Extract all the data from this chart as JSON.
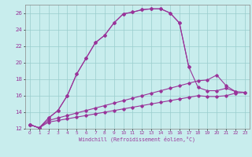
{
  "bg_color": "#c8eded",
  "line_color": "#993399",
  "grid_color": "#99cccc",
  "xlabel": "Windchill (Refroidissement éolien,°C)",
  "xlim": [
    -0.5,
    23.5
  ],
  "ylim": [
    12,
    27
  ],
  "xticks": [
    0,
    1,
    2,
    3,
    4,
    5,
    6,
    7,
    8,
    9,
    10,
    11,
    12,
    13,
    14,
    15,
    16,
    17,
    18,
    19,
    20,
    21,
    22,
    23
  ],
  "yticks": [
    12,
    14,
    16,
    18,
    20,
    22,
    24,
    26
  ],
  "series1_x": [
    0,
    1,
    2,
    3,
    4,
    5,
    6,
    7,
    8,
    9,
    10,
    11,
    12,
    13,
    14,
    15,
    16,
    17,
    18,
    19,
    20,
    21,
    22
  ],
  "series1_y": [
    12.5,
    12.1,
    13.3,
    14.2,
    16.0,
    18.6,
    20.5,
    22.4,
    23.3,
    24.8,
    25.9,
    26.1,
    26.4,
    26.5,
    26.5,
    26.0,
    24.8,
    19.5,
    17.0,
    16.6,
    16.6,
    16.9,
    16.5
  ],
  "series2_x": [
    0,
    1,
    2,
    3,
    4,
    5,
    6,
    7,
    8,
    9,
    10,
    11,
    12,
    13,
    14,
    15,
    16,
    17
  ],
  "series2_y": [
    12.5,
    12.1,
    13.3,
    14.2,
    16.0,
    18.6,
    20.5,
    22.4,
    23.3,
    24.8,
    25.9,
    26.1,
    26.4,
    26.5,
    26.5,
    26.0,
    24.8,
    19.5
  ],
  "series3_x": [
    0,
    1,
    2,
    3,
    4,
    5,
    6,
    7,
    8,
    9,
    10,
    11,
    12,
    13,
    14,
    15,
    16,
    17,
    18,
    19,
    20,
    21,
    22,
    23
  ],
  "series3_y": [
    12.5,
    12.1,
    13.0,
    13.3,
    13.6,
    13.9,
    14.2,
    14.5,
    14.8,
    15.1,
    15.4,
    15.7,
    16.0,
    16.3,
    16.6,
    16.9,
    17.2,
    17.5,
    17.8,
    17.9,
    18.5,
    17.2,
    16.5,
    16.4
  ],
  "series4_x": [
    0,
    1,
    2,
    3,
    4,
    5,
    6,
    7,
    8,
    9,
    10,
    11,
    12,
    13,
    14,
    15,
    16,
    17,
    18,
    19,
    20,
    21,
    22,
    23
  ],
  "series4_y": [
    12.5,
    12.1,
    12.8,
    13.0,
    13.2,
    13.4,
    13.6,
    13.8,
    14.0,
    14.2,
    14.4,
    14.6,
    14.8,
    15.0,
    15.2,
    15.4,
    15.6,
    15.8,
    16.0,
    15.9,
    15.9,
    16.0,
    16.3,
    16.4
  ]
}
